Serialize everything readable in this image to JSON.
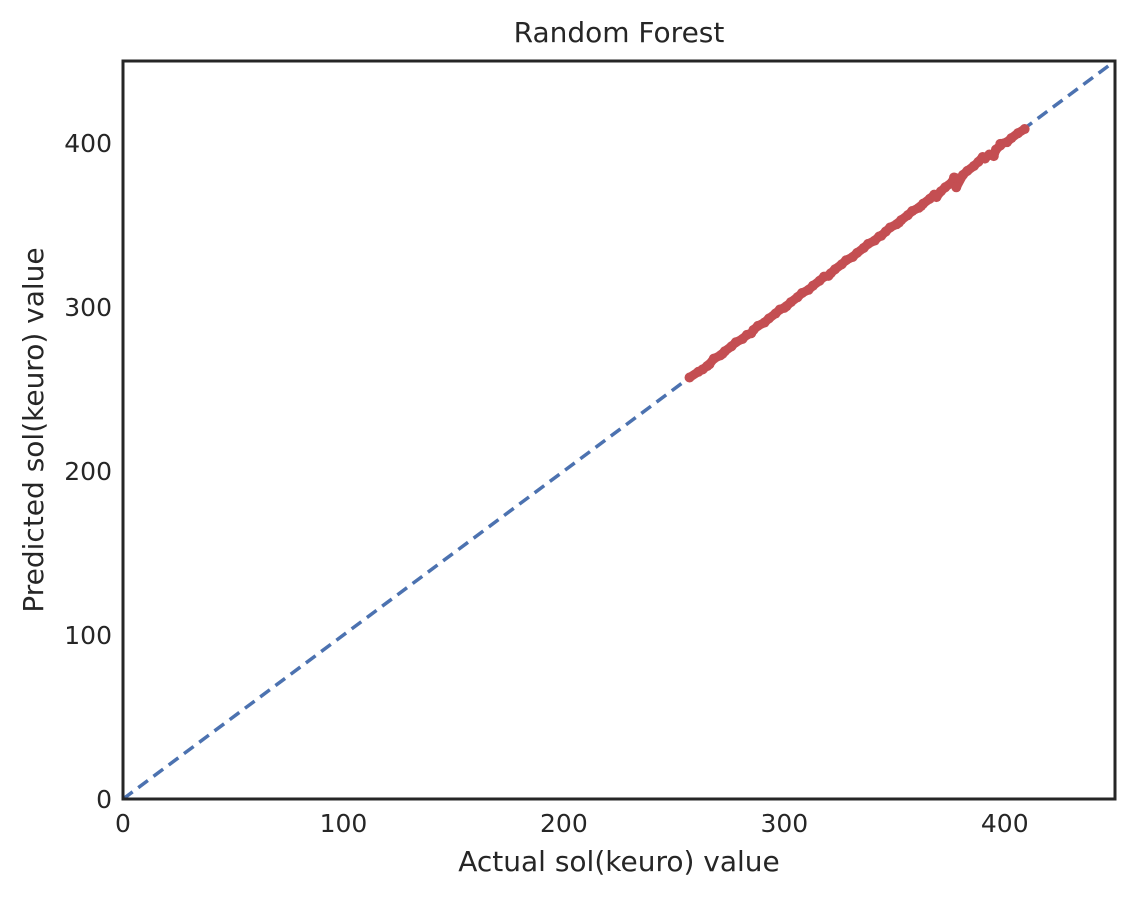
{
  "chart_data": {
    "type": "scatter",
    "title": "Random Forest",
    "xlabel": "Actual sol(keuro) value",
    "ylabel": "Predicted sol(keuro) value",
    "xlim": [
      0,
      450
    ],
    "ylim": [
      0,
      450
    ],
    "xticks": [
      "0",
      "100",
      "200",
      "300",
      "400"
    ],
    "yticks": [
      "0",
      "100",
      "200",
      "300",
      "400"
    ],
    "grid": false,
    "reference_line": {
      "style": "dashed",
      "color": "#4c72b0",
      "from": [
        0,
        0
      ],
      "to": [
        450,
        450
      ]
    },
    "series": [
      {
        "color": "#c44e52",
        "points": [
          [
            257,
            257
          ],
          [
            261,
            260.5
          ],
          [
            263,
            262
          ],
          [
            266,
            265
          ],
          [
            268,
            268.5
          ],
          [
            271,
            270.5
          ],
          [
            273,
            273
          ],
          [
            276,
            276
          ],
          [
            278,
            278.5
          ],
          [
            281,
            280.5
          ],
          [
            283,
            283
          ],
          [
            286,
            286
          ],
          [
            288,
            288.5
          ],
          [
            291,
            290.5
          ],
          [
            293,
            293
          ],
          [
            296,
            296
          ],
          [
            298,
            298.5
          ],
          [
            301,
            300.5
          ],
          [
            303,
            303
          ],
          [
            306,
            306
          ],
          [
            308,
            308.5
          ],
          [
            311,
            310.5
          ],
          [
            313,
            313
          ],
          [
            316,
            316
          ],
          [
            318,
            318.5
          ],
          [
            321,
            320.5
          ],
          [
            323,
            323
          ],
          [
            326,
            326
          ],
          [
            328,
            328.5
          ],
          [
            331,
            330.5
          ],
          [
            333,
            333
          ],
          [
            336,
            336
          ],
          [
            338,
            338.5
          ],
          [
            341,
            340.5
          ],
          [
            343,
            343
          ],
          [
            346,
            346
          ],
          [
            348,
            348.5
          ],
          [
            351,
            350.5
          ],
          [
            353,
            353
          ],
          [
            356,
            356
          ],
          [
            358,
            358.5
          ],
          [
            361,
            360.5
          ],
          [
            363,
            363
          ],
          [
            366,
            366
          ],
          [
            368,
            368.5
          ],
          [
            371,
            370.5
          ],
          [
            373,
            373
          ],
          [
            376,
            376
          ],
          [
            378,
            378.5
          ],
          [
            381,
            380.5
          ],
          [
            383,
            383
          ],
          [
            386,
            386
          ],
          [
            388,
            388.5
          ],
          [
            391,
            390.5
          ],
          [
            393,
            393
          ],
          [
            396,
            396
          ],
          [
            398,
            398.5
          ],
          [
            401,
            400.5
          ],
          [
            403,
            403
          ],
          [
            406,
            406
          ],
          [
            409,
            408.5
          ],
          [
            395,
            392
          ],
          [
            390,
            391.5
          ],
          [
            378,
            373
          ],
          [
            369,
            367
          ],
          [
            362,
            361.5
          ],
          [
            377,
            379
          ],
          [
            398,
            399.5
          ],
          [
            352,
            351.5
          ],
          [
            344,
            343.5
          ],
          [
            320,
            319
          ],
          [
            300,
            299.5
          ],
          [
            285,
            284
          ],
          [
            272,
            271.5
          ],
          [
            265,
            264
          ]
        ]
      }
    ]
  }
}
